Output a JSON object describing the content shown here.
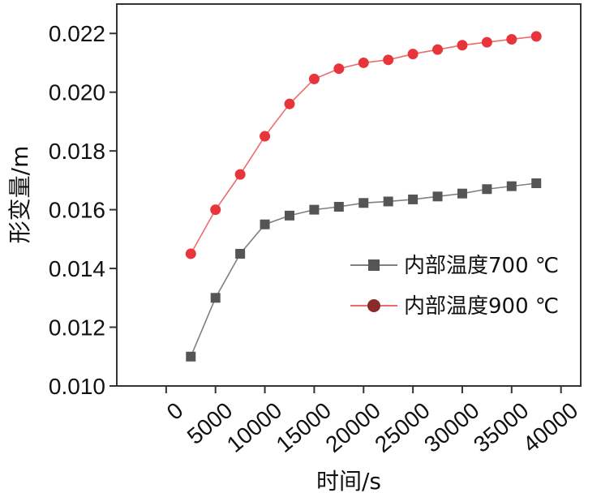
{
  "chart_data": {
    "type": "line",
    "title": "",
    "xlabel": "时间/s",
    "ylabel": "形变量/m",
    "xlim": [
      -5000,
      42000
    ],
    "ylim": [
      0.01,
      0.023
    ],
    "x_ticks": [
      0,
      5000,
      10000,
      15000,
      20000,
      25000,
      30000,
      35000,
      40000
    ],
    "x_tick_labels": [
      "0",
      "5000",
      "10000",
      "15000",
      "20000",
      "25000",
      "30000",
      "35000",
      "40000"
    ],
    "y_ticks": [
      0.01,
      0.012,
      0.014,
      0.016,
      0.018,
      0.02,
      0.022
    ],
    "y_tick_labels": [
      "0.010",
      "0.012",
      "0.014",
      "0.016",
      "0.018",
      "0.020",
      "0.022"
    ],
    "grid": false,
    "legend_position": "right-middle",
    "x": [
      2500,
      5000,
      7500,
      10000,
      12500,
      15000,
      17500,
      20000,
      22500,
      25000,
      27500,
      30000,
      32500,
      35000,
      37500
    ],
    "series": [
      {
        "name": "内部温度700 ℃",
        "marker": "square",
        "line_color": "#808080",
        "marker_color": "#555555",
        "legend_marker_color": "#555555",
        "values": [
          0.011,
          0.013,
          0.0145,
          0.0155,
          0.0158,
          0.016,
          0.0161,
          0.01623,
          0.01628,
          0.01635,
          0.01645,
          0.01655,
          0.0167,
          0.0168,
          0.0169
        ]
      },
      {
        "name": "内部温度900 ℃",
        "marker": "circle",
        "line_color": "#ee6b6b",
        "marker_color": "#e8343b",
        "legend_marker_color": "#8b2a2a",
        "values": [
          0.0145,
          0.016,
          0.0172,
          0.0185,
          0.0196,
          0.02045,
          0.0208,
          0.021,
          0.0211,
          0.0213,
          0.02145,
          0.0216,
          0.0217,
          0.0218,
          0.0219
        ]
      }
    ]
  }
}
